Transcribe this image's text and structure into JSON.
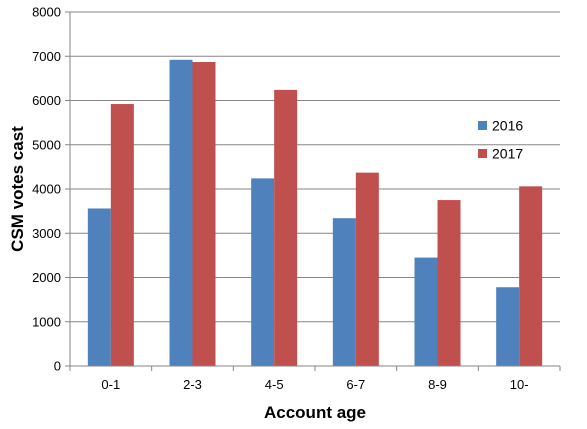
{
  "chart_data": {
    "type": "bar",
    "categories": [
      "0-1",
      "2-3",
      "4-5",
      "6-7",
      "8-9",
      "10-"
    ],
    "series": [
      {
        "name": "2016",
        "values": [
          3560,
          6920,
          4240,
          3340,
          2450,
          1780
        ],
        "color": "#4f81bd"
      },
      {
        "name": "2017",
        "values": [
          5920,
          6870,
          6240,
          4370,
          3750,
          4060
        ],
        "color": "#c0504d"
      }
    ],
    "title": "",
    "xlabel": "Account age",
    "ylabel": "CSM votes cast",
    "ylim": [
      0,
      8000
    ],
    "yticks": [
      0,
      1000,
      2000,
      3000,
      4000,
      5000,
      6000,
      7000,
      8000
    ],
    "grid": true,
    "legend_position": "right"
  }
}
